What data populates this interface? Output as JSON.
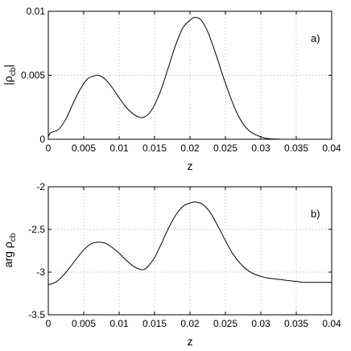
{
  "chart_data": [
    {
      "type": "line",
      "panel_tag": "a)",
      "xlabel": "z",
      "ylabel": "|ρ",
      "ylabel_sub": "cb",
      "ylabel_suffix": "|",
      "xlim": [
        0,
        0.04
      ],
      "ylim": [
        0,
        0.01
      ],
      "grid": true,
      "xticks": [
        0,
        0.005,
        0.01,
        0.015,
        0.02,
        0.025,
        0.03,
        0.035,
        0.04
      ],
      "xtick_labels": [
        "0",
        "0.005",
        "0.01",
        "0.015",
        "0.02",
        "0.025",
        "0.03",
        "0.035",
        "0.04"
      ],
      "yticks": [
        0,
        0.005,
        0.01
      ],
      "ytick_labels": [
        "0",
        "0.005",
        "0.01"
      ],
      "series": [
        {
          "x": [
            0,
            0.0003,
            0.0008,
            0.0015,
            0.0025,
            0.0035,
            0.0045,
            0.0055,
            0.0062,
            0.007,
            0.0078,
            0.0088,
            0.0098,
            0.011,
            0.0122,
            0.0133,
            0.0145,
            0.0158,
            0.017,
            0.018,
            0.019,
            0.02,
            0.0205,
            0.021,
            0.0216,
            0.0225,
            0.0235,
            0.0245,
            0.0255,
            0.0265,
            0.0275,
            0.0285,
            0.0295,
            0.0305,
            0.0315,
            0.033,
            0.035,
            0.04
          ],
          "y": [
            0.0002,
            0.0005,
            0.0006,
            0.0008,
            0.0016,
            0.0028,
            0.0039,
            0.0047,
            0.0049,
            0.005,
            0.0048,
            0.0042,
            0.0034,
            0.0025,
            0.0019,
            0.0017,
            0.0022,
            0.0037,
            0.0057,
            0.0074,
            0.0087,
            0.0093,
            0.0095,
            0.0095,
            0.0093,
            0.0084,
            0.0069,
            0.0052,
            0.0036,
            0.0022,
            0.0012,
            0.0006,
            0.0003,
            0.0001,
            3e-05,
            0,
            0,
            0
          ]
        }
      ]
    },
    {
      "type": "line",
      "panel_tag": "b)",
      "xlabel": "z",
      "ylabel": "arg ρ",
      "ylabel_sub": "cb",
      "ylabel_suffix": "",
      "xlim": [
        0,
        0.04
      ],
      "ylim": [
        -3.5,
        -2
      ],
      "grid": true,
      "xticks": [
        0,
        0.005,
        0.01,
        0.015,
        0.02,
        0.025,
        0.03,
        0.035,
        0.04
      ],
      "xtick_labels": [
        "0",
        "0.005",
        "0.01",
        "0.015",
        "0.02",
        "0.025",
        "0.03",
        "0.035",
        "0.04"
      ],
      "yticks": [
        -3.5,
        -3,
        -2.5,
        -2
      ],
      "ytick_labels": [
        "-3.5",
        "-3",
        "-2.5",
        "-2"
      ],
      "series": [
        {
          "x": [
            0,
            0.001,
            0.002,
            0.003,
            0.004,
            0.005,
            0.006,
            0.007,
            0.008,
            0.009,
            0.01,
            0.011,
            0.012,
            0.013,
            0.0135,
            0.014,
            0.015,
            0.016,
            0.017,
            0.018,
            0.019,
            0.02,
            0.021,
            0.022,
            0.023,
            0.024,
            0.025,
            0.026,
            0.027,
            0.028,
            0.029,
            0.03,
            0.031,
            0.032,
            0.033,
            0.034,
            0.035,
            0.036,
            0.037,
            0.038,
            0.04
          ],
          "y": [
            -3.15,
            -3.12,
            -3.05,
            -2.95,
            -2.84,
            -2.74,
            -2.67,
            -2.65,
            -2.66,
            -2.71,
            -2.78,
            -2.86,
            -2.93,
            -2.97,
            -2.97,
            -2.94,
            -2.83,
            -2.66,
            -2.48,
            -2.33,
            -2.23,
            -2.19,
            -2.18,
            -2.22,
            -2.32,
            -2.47,
            -2.63,
            -2.78,
            -2.89,
            -2.97,
            -3.02,
            -3.05,
            -3.07,
            -3.08,
            -3.09,
            -3.1,
            -3.11,
            -3.12,
            -3.12,
            -3.12,
            -3.12
          ]
        }
      ]
    }
  ]
}
